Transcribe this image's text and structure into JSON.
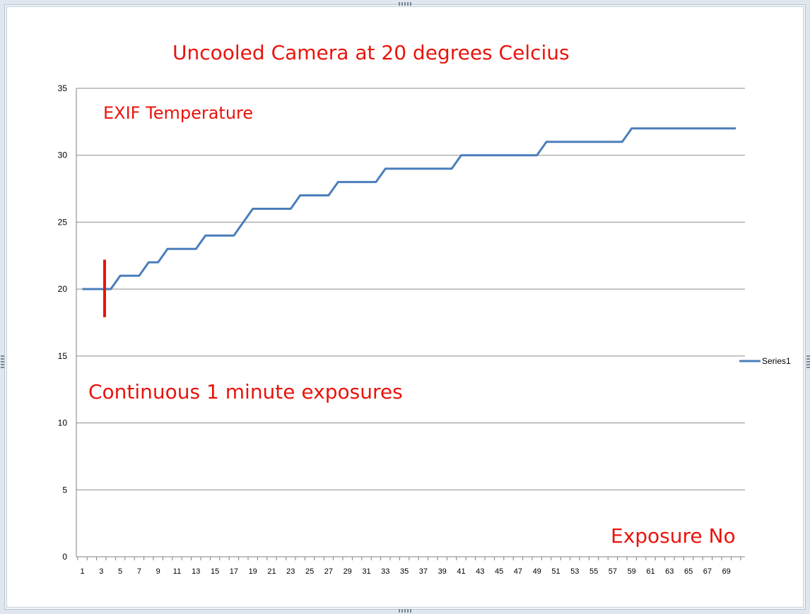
{
  "chart_data": {
    "type": "line",
    "title": "Uncooled Camera at 20 degrees Celcius",
    "ylabel": "EXIF Temperature",
    "xlabel": "Exposure No",
    "annotation": "Continuous 1 minute exposures",
    "ylim": [
      0,
      35
    ],
    "yticks": [
      0,
      5,
      10,
      15,
      20,
      25,
      30,
      35
    ],
    "x": [
      1,
      2,
      3,
      4,
      5,
      6,
      7,
      8,
      9,
      10,
      11,
      12,
      13,
      14,
      15,
      16,
      17,
      18,
      19,
      20,
      21,
      22,
      23,
      24,
      25,
      26,
      27,
      28,
      29,
      30,
      31,
      32,
      33,
      34,
      35,
      36,
      37,
      38,
      39,
      40,
      41,
      42,
      43,
      44,
      45,
      46,
      47,
      48,
      49,
      50,
      51,
      52,
      53,
      54,
      55,
      56,
      57,
      58,
      59,
      60,
      61,
      62,
      63,
      64,
      65,
      66,
      67,
      68,
      69,
      70
    ],
    "xtick_labels": [
      "1",
      "3",
      "5",
      "7",
      "9",
      "11",
      "13",
      "15",
      "17",
      "19",
      "21",
      "23",
      "25",
      "27",
      "29",
      "31",
      "33",
      "35",
      "37",
      "39",
      "41",
      "43",
      "45",
      "47",
      "49",
      "51",
      "53",
      "55",
      "57",
      "59",
      "61",
      "63",
      "65",
      "67",
      "69"
    ],
    "series": [
      {
        "name": "Series1",
        "values": [
          20,
          20,
          20,
          20,
          21,
          21,
          21,
          22,
          22,
          23,
          23,
          23,
          23,
          24,
          24,
          24,
          24,
          25,
          26,
          26,
          26,
          26,
          26,
          27,
          27,
          27,
          27,
          28,
          28,
          28,
          28,
          28,
          29,
          29,
          29,
          29,
          29,
          29,
          29,
          29,
          30,
          30,
          30,
          30,
          30,
          30,
          30,
          30,
          30,
          31,
          31,
          31,
          31,
          31,
          31,
          31,
          31,
          31,
          32,
          32,
          32,
          32,
          32,
          32,
          32,
          32,
          32,
          32,
          32,
          32
        ]
      }
    ],
    "marker": {
      "x": 3.35,
      "y_range": [
        17.9,
        22.2
      ]
    },
    "grid": true,
    "legend": "right",
    "colors": {
      "series": "#4a7ebb",
      "annotation": "#e8140c",
      "grid": "#8c8c8c"
    }
  }
}
